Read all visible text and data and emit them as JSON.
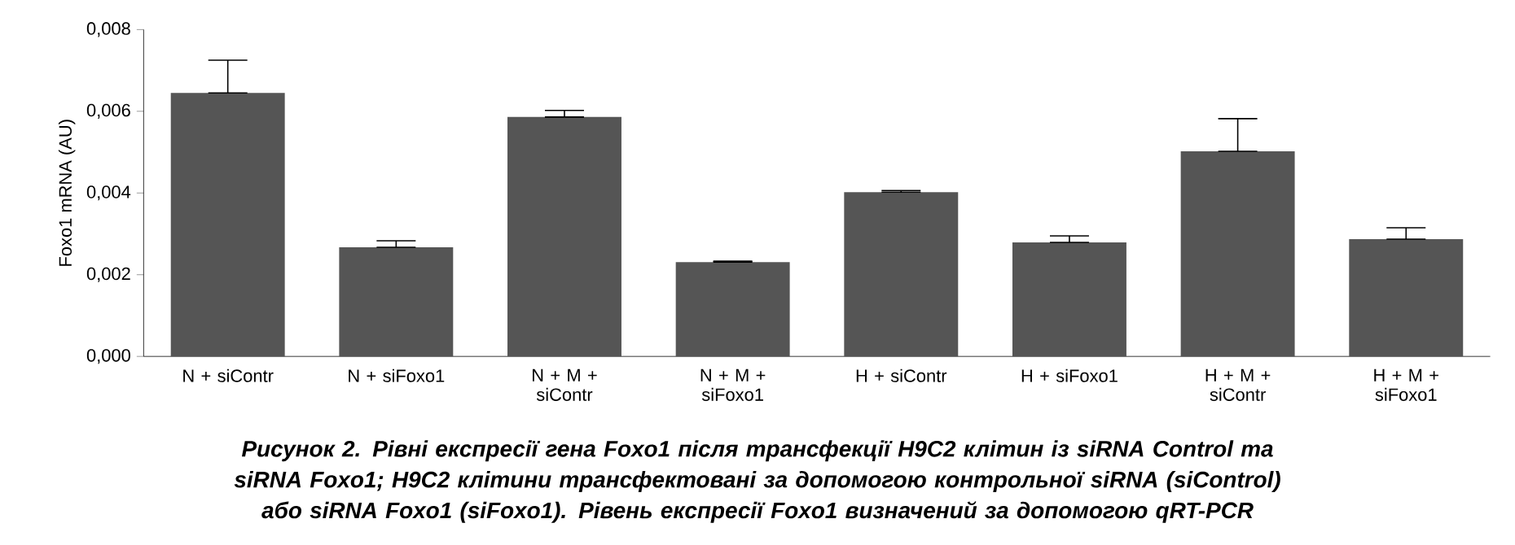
{
  "chart_data": {
    "type": "bar",
    "ylabel": "Foxo1 mRNA (AU)",
    "categories": [
      "N + siContr",
      "N + siFoxo1",
      "N + M + siContr",
      "N + M + siFoxo1",
      "H + siContr",
      "H + siFoxo1",
      "H + M + siContr",
      "H + M + siFoxo1"
    ],
    "values": [
      0.00645,
      0.00267,
      0.00586,
      0.00231,
      0.00402,
      0.00279,
      0.00502,
      0.00287
    ],
    "errors": [
      [
        0.00645,
        0.00725
      ],
      [
        0.00267,
        0.00283
      ],
      [
        0.00586,
        0.00602
      ],
      [
        0.00231,
        0.00233
      ],
      [
        0.00402,
        0.00406
      ],
      [
        0.00279,
        0.00295
      ],
      [
        0.00502,
        0.00582
      ],
      [
        0.00287,
        0.00315
      ]
    ],
    "color": "#555555",
    "ylim": [
      0,
      0.008
    ],
    "yticks": [
      {
        "value": 0,
        "label": "0,000"
      },
      {
        "value": 0.002,
        "label": "0,002"
      },
      {
        "value": 0.004,
        "label": "0,004"
      },
      {
        "value": 0.006,
        "label": "0,006"
      },
      {
        "value": 0.008,
        "label": "0,008"
      }
    ],
    "grid": false,
    "annotations": [
      "Рисунок 2. Рівні експресії гена Foxo1 після трансфекції H9C2 клітин із siRNA Control та siRNA Foxo1; H9C2 клітини трансфектовані за допомогою контрольної siRNA (siControl) або siRNA Foxo1 (siFoxo1). Рівень експресії Foxo1 визначений за допомогою qRT-PCR"
    ]
  }
}
